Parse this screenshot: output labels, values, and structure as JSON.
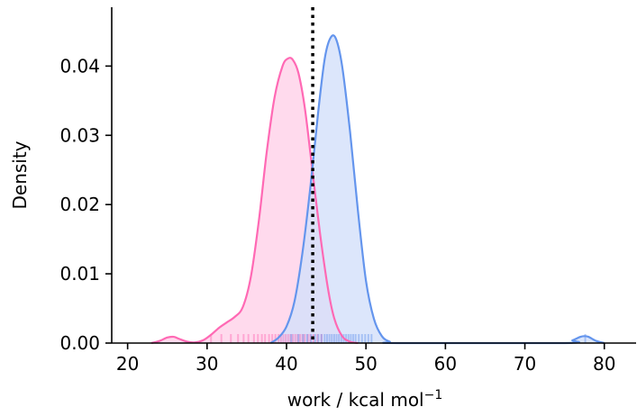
{
  "chart_data": {
    "type": "area",
    "title": "",
    "xlabel": "work / kcal mol",
    "xlabel_superscript": "−1",
    "ylabel": "Density",
    "xlim": [
      18,
      84
    ],
    "ylim": [
      0,
      0.0485
    ],
    "x_ticks": [
      20,
      30,
      40,
      50,
      60,
      70,
      80
    ],
    "x_tick_labels": [
      "20",
      "30",
      "40",
      "50",
      "60",
      "70",
      "80"
    ],
    "y_ticks": [
      0.0,
      0.01,
      0.02,
      0.03,
      0.04
    ],
    "y_tick_labels": [
      "0.00",
      "0.01",
      "0.02",
      "0.03",
      "0.04"
    ],
    "grid": false,
    "legend": false,
    "reference_line": {
      "x": 43.3,
      "style": "dotted",
      "color": "#000000"
    },
    "series": [
      {
        "color": "#ff69b4",
        "fill": "#ffd1e8",
        "x": [
          23,
          24,
          25,
          25.8,
          26.5,
          27.5,
          28.5,
          29.5,
          30.5,
          31.5,
          32.5,
          33.5,
          34.5,
          35.5,
          36.5,
          37.5,
          38.5,
          39.5,
          40.2,
          40.8,
          41.5,
          42.3,
          43.2,
          44.2,
          45.2,
          46.0,
          47.0,
          48.0,
          49.0
        ],
        "y": [
          0.0,
          0.0003,
          0.0008,
          0.0009,
          0.0006,
          0.0002,
          0.0001,
          0.0004,
          0.0012,
          0.0022,
          0.003,
          0.0038,
          0.0052,
          0.0095,
          0.0175,
          0.0275,
          0.0355,
          0.04,
          0.0411,
          0.0409,
          0.039,
          0.034,
          0.0255,
          0.016,
          0.008,
          0.0036,
          0.001,
          0.0002,
          0.0
        ],
        "rug": [
          30.5,
          31.8,
          33.0,
          33.9,
          34.6,
          35.2,
          35.9,
          36.4,
          36.9,
          37.3,
          37.8,
          38.2,
          38.6,
          39.0,
          39.3,
          39.6,
          39.9,
          40.2,
          40.5,
          40.8,
          41.1,
          41.4,
          41.7,
          42.0,
          42.3,
          42.7,
          43.0,
          43.4,
          43.9,
          44.4
        ]
      },
      {
        "color": "#6495ed",
        "fill": "#d3e0fa",
        "x": [
          38,
          39,
          40,
          41,
          42,
          43,
          44,
          44.8,
          45.5,
          46.2,
          47,
          48,
          49,
          50,
          51,
          52,
          53,
          54,
          75,
          76,
          77,
          77.5,
          78,
          79,
          80
        ],
        "y": [
          0.0,
          0.0008,
          0.0024,
          0.006,
          0.013,
          0.0225,
          0.0335,
          0.041,
          0.044,
          0.044,
          0.04,
          0.0305,
          0.019,
          0.009,
          0.0035,
          0.001,
          0.0002,
          0.0,
          0.0,
          0.0004,
          0.0009,
          0.001,
          0.0009,
          0.0003,
          0.0
        ],
        "rug": [
          40.6,
          41.5,
          42.1,
          42.6,
          43.1,
          43.6,
          44.0,
          44.4,
          44.8,
          45.1,
          45.4,
          45.7,
          46.0,
          46.3,
          46.6,
          46.9,
          47.2,
          47.5,
          47.8,
          48.1,
          48.4,
          48.7,
          49.1,
          49.5,
          49.9,
          50.3,
          50.7,
          77.6
        ]
      }
    ]
  }
}
